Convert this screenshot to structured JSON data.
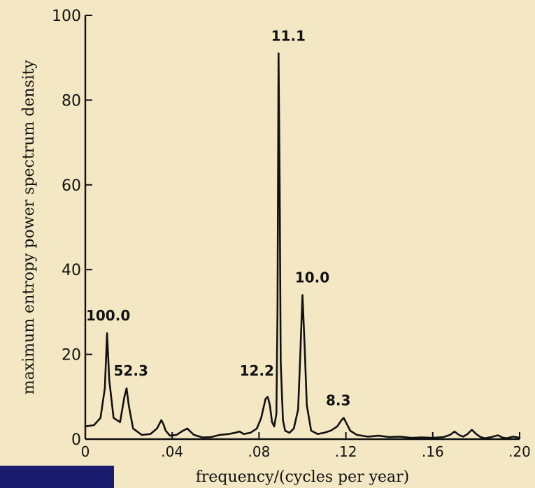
{
  "chart_data": {
    "type": "line",
    "title": "",
    "xlabel": "frequency/(cycles per year)",
    "ylabel": "maximum entropy power spectrum density",
    "xlim": [
      0,
      0.2
    ],
    "ylim": [
      0,
      100
    ],
    "grid": false,
    "legend": "none",
    "x_ticks": [
      0,
      0.04,
      0.08,
      0.12,
      0.16,
      0.2
    ],
    "x_tick_labels": [
      "0",
      ".04",
      ".08",
      ".12",
      ".16",
      ".20"
    ],
    "y_ticks": [
      0,
      20,
      40,
      60,
      80,
      100
    ],
    "y_tick_labels": [
      "0",
      "20",
      "40",
      "60",
      "80",
      "100"
    ],
    "series": [
      {
        "x": [
          0,
          0.004,
          0.007,
          0.009,
          0.01,
          0.011,
          0.013,
          0.016,
          0.018,
          0.019,
          0.02,
          0.022,
          0.026,
          0.03,
          0.033,
          0.035,
          0.036,
          0.037,
          0.039,
          0.042,
          0.045,
          0.047,
          0.048,
          0.05,
          0.054,
          0.058,
          0.062,
          0.066,
          0.069,
          0.071,
          0.073,
          0.076,
          0.079,
          0.081,
          0.083,
          0.084,
          0.085,
          0.086,
          0.087,
          0.088,
          0.0885,
          0.089,
          0.0895,
          0.09,
          0.091,
          0.092,
          0.094,
          0.096,
          0.098,
          0.099,
          0.1,
          0.101,
          0.102,
          0.104,
          0.107,
          0.11,
          0.113,
          0.116,
          0.118,
          0.119,
          0.12,
          0.122,
          0.125,
          0.13,
          0.135,
          0.14,
          0.145,
          0.15,
          0.155,
          0.16,
          0.165,
          0.168,
          0.17,
          0.172,
          0.174,
          0.176,
          0.178,
          0.18,
          0.182,
          0.184,
          0.187,
          0.19,
          0.192,
          0.194,
          0.197,
          0.2
        ],
        "y": [
          3,
          3.3,
          5,
          12,
          25,
          14,
          5,
          4,
          10,
          12,
          8,
          2.5,
          1,
          1.2,
          2.5,
          4.5,
          3.5,
          2,
          0.8,
          1,
          2,
          2.5,
          2,
          1,
          0.4,
          0.5,
          1,
          1.2,
          1.5,
          1.8,
          1.2,
          1.5,
          2.5,
          5,
          9.5,
          10,
          8,
          4,
          3,
          6,
          30,
          91,
          60,
          18,
          4.5,
          2,
          1.5,
          2.5,
          7,
          20,
          34,
          22,
          8,
          2,
          1.2,
          1.5,
          2,
          3,
          4.5,
          5,
          4,
          2,
          1,
          0.6,
          0.8,
          0.5,
          0.6,
          0.3,
          0.4,
          0.3,
          0.5,
          1,
          1.8,
          1,
          0.6,
          1.2,
          2.2,
          1.2,
          0.5,
          0.2,
          0.5,
          0.9,
          0.4,
          0.2,
          0.6,
          0.3
        ]
      }
    ],
    "annotations": [
      {
        "text": "100.0",
        "x": 0.0105,
        "y": 28
      },
      {
        "text": "52.3",
        "x": 0.021,
        "y": 15
      },
      {
        "text": "12.2",
        "x": 0.079,
        "y": 15
      },
      {
        "text": "11.1",
        "x": 0.0935,
        "y": 94
      },
      {
        "text": "10.0",
        "x": 0.1045,
        "y": 37
      },
      {
        "text": "8.3",
        "x": 0.1165,
        "y": 8
      }
    ]
  }
}
